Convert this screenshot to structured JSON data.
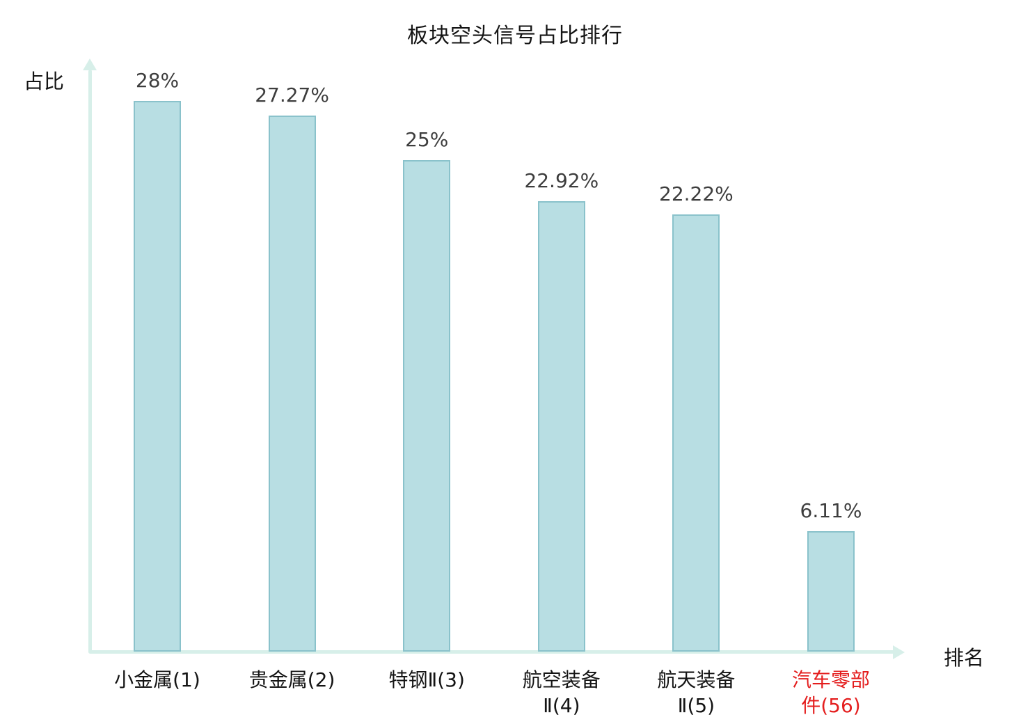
{
  "chart_data": {
    "type": "bar",
    "title": "板块空头信号占比排行",
    "ylabel": "占比",
    "xlabel": "排名",
    "categories": [
      "小金属(1)",
      "贵金属(2)",
      "特钢Ⅱ(3)",
      "航空装备\nⅡ(4)",
      "航天装备\nⅡ(5)",
      "汽车零部\n件(56)"
    ],
    "values": [
      28,
      27.27,
      25,
      22.92,
      22.22,
      6.11
    ],
    "value_labels": [
      "28%",
      "27.27%",
      "25%",
      "22.92%",
      "22.22%",
      "6.11%"
    ],
    "highlighted_category_index": 5,
    "ylim": [
      0,
      30
    ],
    "grid": false,
    "legend": "none"
  },
  "colors": {
    "background": "#ffffff",
    "bar_fill": "#b8dee3",
    "bar_border": "#8ac2cb",
    "axis": "#d7efe9",
    "value_label": "#3d3d3d",
    "category_label": "#141414",
    "highlight": "#e41e1e",
    "title": "#141414"
  }
}
